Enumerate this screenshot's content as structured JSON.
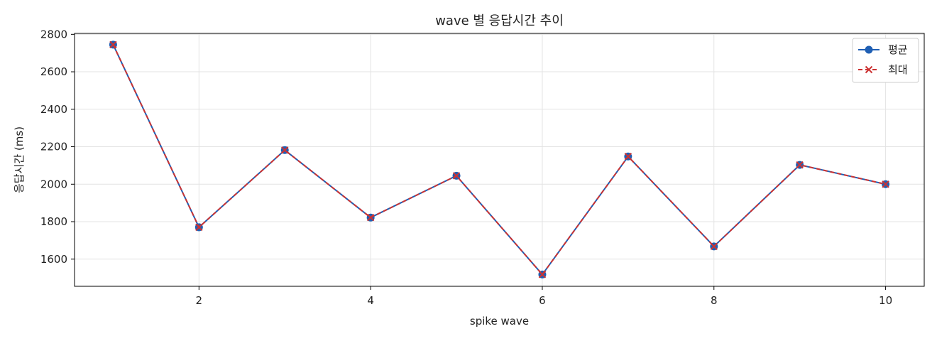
{
  "chart_data": {
    "type": "line",
    "title": "wave 별 응답시간 추이",
    "xlabel": "spike wave",
    "ylabel": "응답시간 (ms)",
    "x": [
      1,
      2,
      3,
      4,
      5,
      6,
      7,
      8,
      9,
      10
    ],
    "xlim": [
      0.55,
      10.45
    ],
    "ylim": [
      1455,
      2805
    ],
    "xticks": [
      2,
      4,
      6,
      8,
      10
    ],
    "yticks": [
      1600,
      1800,
      2000,
      2200,
      2400,
      2600,
      2800
    ],
    "grid": true,
    "legend_position": "top-right",
    "series": [
      {
        "name": "평균",
        "marker": "circle",
        "line_style": "solid",
        "color": "#1f5fb4",
        "values": [
          2745,
          1770,
          2182,
          1822,
          2045,
          1518,
          2148,
          1668,
          2103,
          2000
        ]
      },
      {
        "name": "최대",
        "marker": "x",
        "line_style": "dashed",
        "color": "#cc3333",
        "values": [
          2745,
          1770,
          2182,
          1822,
          2045,
          1518,
          2148,
          1668,
          2103,
          2000
        ]
      }
    ]
  }
}
